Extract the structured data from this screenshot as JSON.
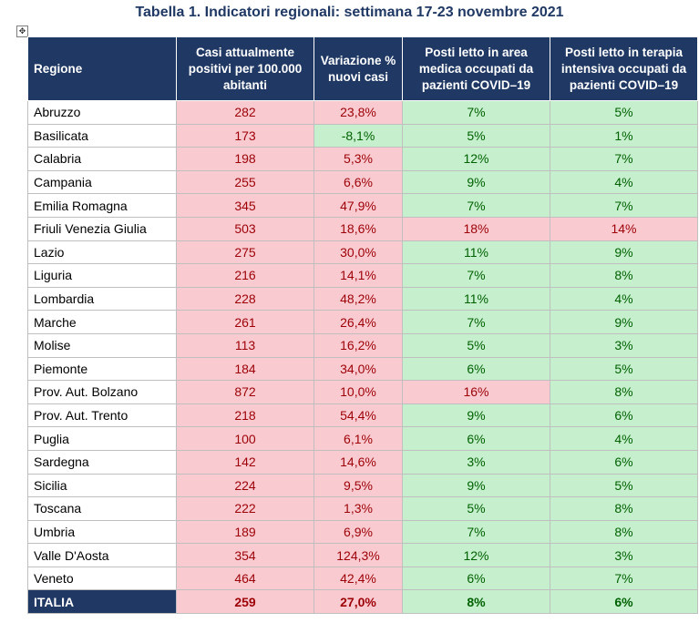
{
  "title": "Tabella 1. Indicatori regionali: settimana 17-23 novembre 2021",
  "colors": {
    "header_bg": "#1f3864",
    "pink_bg": "#f9cbd1",
    "pink_text": "#9c0006",
    "green_bg": "#c6efce",
    "green_text": "#006100"
  },
  "columns": [
    "Regione",
    "Casi attualmente positivi per 100.000 abitanti",
    "Variazione % nuovi casi",
    "Posti letto in area medica occupati da pazienti COVID–19",
    "Posti letto in terapia intensiva occupati da pazienti COVID–19"
  ],
  "rows": [
    {
      "region": "Abruzzo",
      "cases": "282",
      "var": "23,8%",
      "med": "7%",
      "icu": "5%"
    },
    {
      "region": "Basilicata",
      "cases": "173",
      "var": "-8,1%",
      "med": "5%",
      "icu": "1%"
    },
    {
      "region": "Calabria",
      "cases": "198",
      "var": "5,3%",
      "med": "12%",
      "icu": "7%"
    },
    {
      "region": "Campania",
      "cases": "255",
      "var": "6,6%",
      "med": "9%",
      "icu": "4%"
    },
    {
      "region": "Emilia Romagna",
      "cases": "345",
      "var": "47,9%",
      "med": "7%",
      "icu": "7%"
    },
    {
      "region": "Friuli Venezia Giulia",
      "cases": "503",
      "var": "18,6%",
      "med": "18%",
      "icu": "14%"
    },
    {
      "region": "Lazio",
      "cases": "275",
      "var": "30,0%",
      "med": "11%",
      "icu": "9%"
    },
    {
      "region": "Liguria",
      "cases": "216",
      "var": "14,1%",
      "med": "7%",
      "icu": "8%"
    },
    {
      "region": "Lombardia",
      "cases": "228",
      "var": "48,2%",
      "med": "11%",
      "icu": "4%"
    },
    {
      "region": "Marche",
      "cases": "261",
      "var": "26,4%",
      "med": "7%",
      "icu": "9%"
    },
    {
      "region": "Molise",
      "cases": "113",
      "var": "16,2%",
      "med": "5%",
      "icu": "3%"
    },
    {
      "region": "Piemonte",
      "cases": "184",
      "var": "34,0%",
      "med": "6%",
      "icu": "5%"
    },
    {
      "region": "Prov. Aut. Bolzano",
      "cases": "872",
      "var": "10,0%",
      "med": "16%",
      "icu": "8%"
    },
    {
      "region": "Prov. Aut. Trento",
      "cases": "218",
      "var": "54,4%",
      "med": "9%",
      "icu": "6%"
    },
    {
      "region": "Puglia",
      "cases": "100",
      "var": "6,1%",
      "med": "6%",
      "icu": "4%"
    },
    {
      "region": "Sardegna",
      "cases": "142",
      "var": "14,6%",
      "med": "3%",
      "icu": "6%"
    },
    {
      "region": "Sicilia",
      "cases": "224",
      "var": "9,5%",
      "med": "9%",
      "icu": "5%"
    },
    {
      "region": "Toscana",
      "cases": "222",
      "var": "1,3%",
      "med": "5%",
      "icu": "8%"
    },
    {
      "region": "Umbria",
      "cases": "189",
      "var": "6,9%",
      "med": "7%",
      "icu": "8%"
    },
    {
      "region": "Valle D'Aosta",
      "cases": "354",
      "var": "124,3%",
      "med": "12%",
      "icu": "3%"
    },
    {
      "region": "Veneto",
      "cases": "464",
      "var": "42,4%",
      "med": "6%",
      "icu": "7%"
    }
  ],
  "total": {
    "region": "ITALIA",
    "cases": "259",
    "var": "27,0%",
    "med": "8%",
    "icu": "6%"
  }
}
